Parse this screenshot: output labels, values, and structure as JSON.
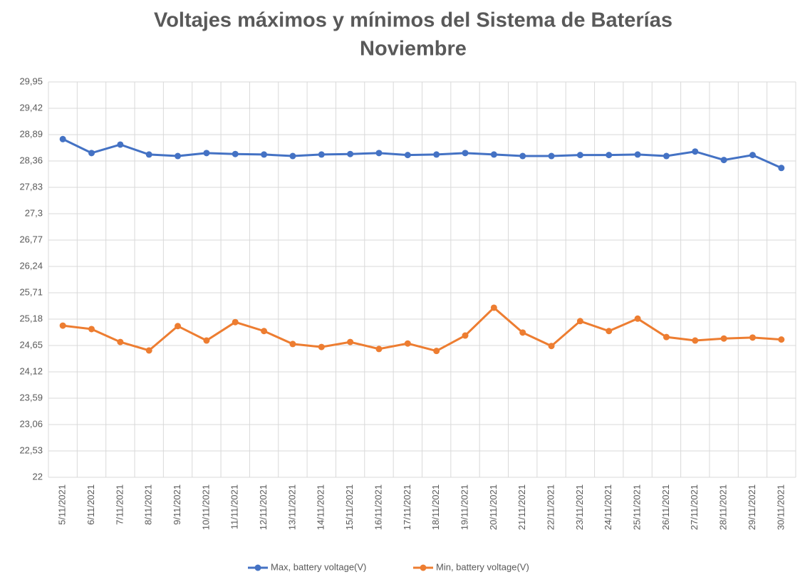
{
  "chart_data": {
    "type": "line",
    "title": [
      "Voltajes máximos y mínimos del Sistema de Baterías",
      "Noviembre"
    ],
    "categories": [
      "5/11/2021",
      "6/11/2021",
      "7/11/2021",
      "8/11/2021",
      "9/11/2021",
      "10/11/2021",
      "11/11/2021",
      "12/11/2021",
      "13/11/2021",
      "14/11/2021",
      "15/11/2021",
      "16/11/2021",
      "17/11/2021",
      "18/11/2021",
      "19/11/2021",
      "20/11/2021",
      "21/11/2021",
      "22/11/2021",
      "23/11/2021",
      "24/11/2021",
      "25/11/2021",
      "26/11/2021",
      "27/11/2021",
      "28/11/2021",
      "29/11/2021",
      "30/11/2021"
    ],
    "series": [
      {
        "name": "Max, battery voltage(V)",
        "color": "#4472c4",
        "values": [
          28.8,
          28.52,
          28.69,
          28.49,
          28.46,
          28.52,
          28.5,
          28.49,
          28.46,
          28.49,
          28.5,
          28.52,
          28.48,
          28.49,
          28.52,
          28.49,
          28.46,
          28.46,
          28.48,
          28.48,
          28.49,
          28.46,
          28.55,
          28.38,
          28.48,
          28.22
        ]
      },
      {
        "name": "Min, battery voltage(V)",
        "color": "#ed7d31",
        "values": [
          25.05,
          24.98,
          24.72,
          24.55,
          25.04,
          24.75,
          25.12,
          24.94,
          24.68,
          24.62,
          24.72,
          24.58,
          24.69,
          24.54,
          24.85,
          25.41,
          24.91,
          24.64,
          25.14,
          24.94,
          25.19,
          24.82,
          24.75,
          24.79,
          24.81,
          24.77
        ]
      }
    ],
    "ylim": [
      22,
      29.95
    ],
    "yticks": [
      22,
      {
        "value": 22.53,
        "label": "22,53"
      },
      {
        "value": 23.06,
        "label": "23,06"
      },
      {
        "value": 23.59,
        "label": "23,59"
      },
      {
        "value": 24.12,
        "label": "24,12"
      },
      {
        "value": 24.65,
        "label": "24,65"
      },
      {
        "value": 25.18,
        "label": "25,18"
      },
      {
        "value": 25.71,
        "label": "25,71"
      },
      {
        "value": 26.24,
        "label": "26,24"
      },
      {
        "value": 26.77,
        "label": "26,77"
      },
      {
        "value": 27.3,
        "label": "27,3"
      },
      {
        "value": 27.83,
        "label": "27,83"
      },
      {
        "value": 28.36,
        "label": "28,36"
      },
      {
        "value": 28.89,
        "label": "28,89"
      },
      {
        "value": 29.42,
        "label": "29,42"
      },
      {
        "value": 29.95,
        "label": "29,95"
      }
    ],
    "grid": true,
    "legend": "bottom"
  }
}
